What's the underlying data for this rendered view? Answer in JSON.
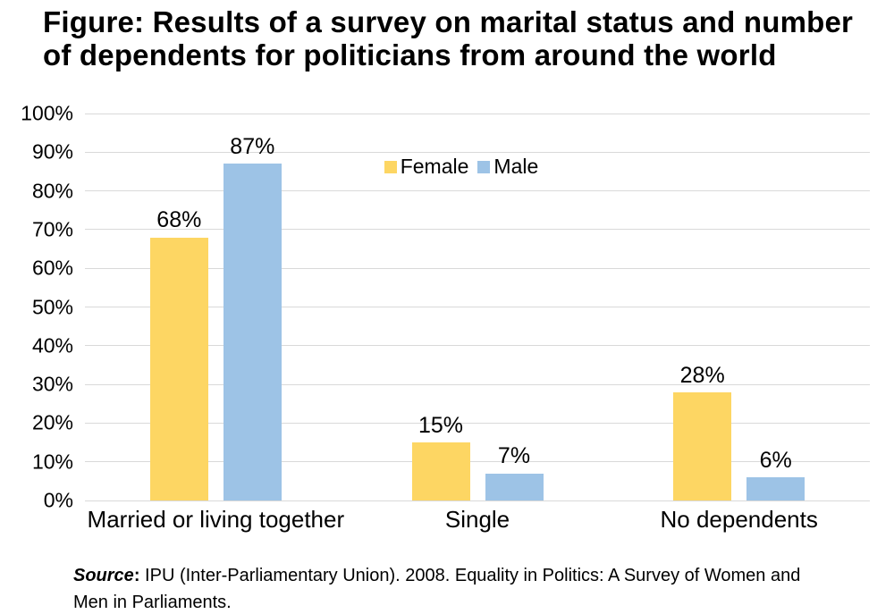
{
  "title": "Figure: Results of a survey on marital status and number of dependents for politicians from around the world",
  "source": {
    "label": "Source",
    "colon": ":",
    "text": " IPU (Inter-Parliamentary Union). 2008. Equality in Politics: A Survey of Women and Men in Parliaments."
  },
  "colors": {
    "female": "#FDD663",
    "male": "#9DC3E6",
    "gridline": "#D9D9D9",
    "text": "#000000",
    "background": "#FFFFFF"
  },
  "chart_data": {
    "type": "bar",
    "categories": [
      "Married or living together",
      "Single",
      "No dependents"
    ],
    "series": [
      {
        "name": "Female",
        "values": [
          68,
          15,
          28
        ],
        "color": "#FDD663"
      },
      {
        "name": "Male",
        "values": [
          87,
          7,
          6
        ],
        "color": "#9DC3E6"
      }
    ],
    "value_label_suffix": "%",
    "y_ticks": [
      "0%",
      "10%",
      "20%",
      "30%",
      "40%",
      "50%",
      "60%",
      "70%",
      "80%",
      "90%",
      "100%"
    ],
    "ylim": [
      0,
      100
    ],
    "grid": true,
    "gridline_color": "#D9D9D9",
    "legend_position": "top-center-inside",
    "legend_entries": [
      "Female",
      "Male"
    ]
  }
}
